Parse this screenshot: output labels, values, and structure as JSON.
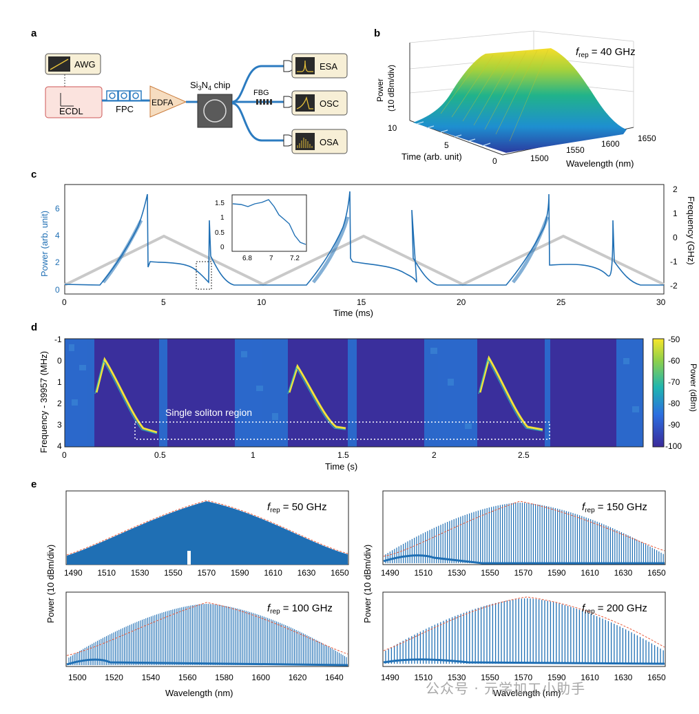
{
  "panel_a": {
    "label": "a",
    "awg": "AWG",
    "ecdl": "ECDL",
    "fpc": "FPC",
    "edfa": "EDFA",
    "chip_prefix": "Si",
    "chip_sub1": "3",
    "chip_mid": "N",
    "chip_sub2": "4",
    "chip_suffix": " chip",
    "fbg": "FBG",
    "esa": "ESA",
    "osc": "OSC",
    "osa": "OSA"
  },
  "panel_b": {
    "label": "b",
    "frep_f": "f",
    "frep_sub": "rep",
    "frep_val": " = 40 GHz",
    "ylabel1": "Power",
    "ylabel2": "(10 dBm/div)",
    "time_label": "Time (arb. unit)",
    "wl_label": "Wavelength (nm)",
    "time_ticks": [
      "10",
      "5",
      "0"
    ],
    "wl_ticks": [
      "1500",
      "1550",
      "1600",
      "1650"
    ]
  },
  "panel_c": {
    "label": "c",
    "xlabel": "Time (ms)",
    "ylabel_left": "Power (arb. unit)",
    "ylabel_right": "Frequency (GHz)",
    "x_ticks": [
      "0",
      "5",
      "10",
      "15",
      "20",
      "25",
      "30"
    ],
    "y_left_ticks": [
      "0",
      "2",
      "4",
      "6"
    ],
    "y_right_ticks": [
      "2",
      "1",
      "0",
      "-1",
      "-2"
    ],
    "inset_x_ticks": [
      "6.8",
      "7",
      "7.2"
    ],
    "inset_y_ticks": [
      "1.5",
      "1",
      "0.5",
      "0"
    ]
  },
  "panel_d": {
    "label": "d",
    "xlabel": "Time (s)",
    "ylabel": "Frequency - 39957 (MHz)",
    "annotation": "Single soliton region",
    "x_ticks": [
      "0",
      "0.5",
      "1",
      "1.5",
      "2",
      "2.5"
    ],
    "y_ticks": [
      "-1",
      "0",
      "1",
      "2",
      "3",
      "4"
    ],
    "colorbar_label": "Power (dBm)",
    "colorbar_ticks": [
      "-50",
      "-60",
      "-70",
      "-80",
      "-90",
      "-100"
    ]
  },
  "panel_e": {
    "label": "e",
    "ylabel": "Power (10 dBm/div)",
    "xlabel": "Wavelength (nm)",
    "plots": [
      {
        "frep_val": " = 50 GHz",
        "ticks": [
          "1490",
          "1510",
          "1530",
          "1550",
          "1570",
          "1590",
          "1610",
          "1630",
          "1650"
        ]
      },
      {
        "frep_val": " = 150 GHz",
        "ticks": [
          "1490",
          "1510",
          "1530",
          "1550",
          "1570",
          "1590",
          "1610",
          "1630",
          "1650"
        ]
      },
      {
        "frep_val": " = 100 GHz",
        "ticks": [
          "1500",
          "1520",
          "1540",
          "1560",
          "1580",
          "1600",
          "1620",
          "1640"
        ]
      },
      {
        "frep_val": " = 200 GHz",
        "ticks": [
          "1490",
          "1510",
          "1530",
          "1550",
          "1570",
          "1590",
          "1610",
          "1630",
          "1650"
        ]
      }
    ]
  },
  "watermark": "公众号 · 元学加工小助手"
}
